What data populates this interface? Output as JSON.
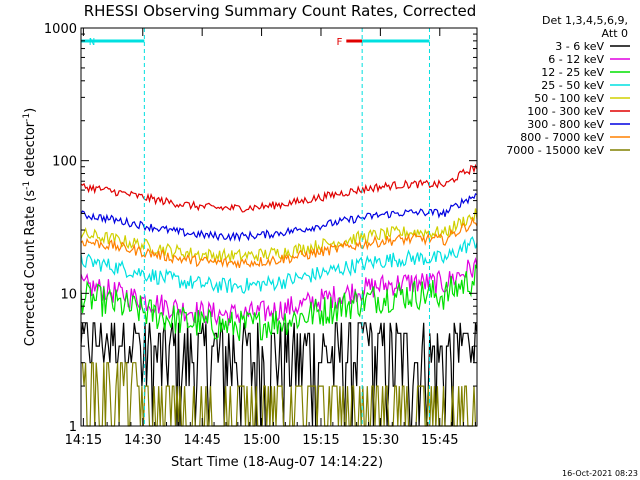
{
  "chart_data": {
    "type": "line",
    "title": "RHESSI Observing Summary Count Rates, Corrected",
    "xlabel": "Start Time (18-Aug-07 14:14:22)",
    "ylabel_main": "Corrected Count Rate (s",
    "ylabel_sup1": "-1",
    "ylabel_mid": " detector",
    "ylabel_sup2": "-1",
    "ylabel_end": ")",
    "xticks": [
      "14:15",
      "14:30",
      "14:45",
      "15:00",
      "15:15",
      "15:30",
      "15:45"
    ],
    "yticks": [
      "1",
      "10",
      "100",
      "1000"
    ],
    "xlim_minutes": [
      0,
      100
    ],
    "ylim": [
      1,
      1000
    ],
    "yscale": "log",
    "legend_header": [
      "Det 1,3,4,5,6,9,",
      "Att 0"
    ],
    "legend_position": "right",
    "series": [
      {
        "name": "3 - 6 keV",
        "color": "#000000",
        "profile": "bkg_low"
      },
      {
        "name": "6 - 12 keV",
        "color": "#e000e0",
        "profile": "wave",
        "base": 11,
        "amp": 0.4,
        "noise": 0.09
      },
      {
        "name": "12 - 25 keV",
        "color": "#00e000",
        "profile": "wave",
        "base": 9,
        "amp": 0.4,
        "noise": 0.12
      },
      {
        "name": "25 - 50 keV",
        "color": "#00e0e0",
        "profile": "wave",
        "base": 17,
        "amp": 0.35,
        "noise": 0.06
      },
      {
        "name": "50 - 100 keV",
        "color": "#d0d000",
        "profile": "wave",
        "base": 27,
        "amp": 0.3,
        "noise": 0.05
      },
      {
        "name": "100 - 300 keV",
        "color": "#e00000",
        "profile": "wave",
        "base": 62,
        "amp": 0.3,
        "noise": 0.03
      },
      {
        "name": "300 - 800 keV",
        "color": "#0000e0",
        "profile": "wave",
        "base": 38,
        "amp": 0.3,
        "noise": 0.03
      },
      {
        "name": "800 - 7000 keV",
        "color": "#ff8000",
        "profile": "wave",
        "base": 24,
        "amp": 0.3,
        "noise": 0.04
      },
      {
        "name": "7000 - 15000 keV",
        "color": "#808000",
        "profile": "bkg_olive"
      }
    ],
    "annotations": [
      {
        "label": "N",
        "color": "#00e0e0",
        "x_start": 0,
        "x_end": 16
      },
      {
        "label": "F",
        "color": "#e00000",
        "x_start": 67,
        "x_end": 71
      },
      {
        "label": "",
        "color": "#00e0e0",
        "x_start": 71,
        "x_end": 88
      }
    ],
    "vlines_minutes": [
      0,
      16,
      71,
      88
    ]
  },
  "timestamp": "16-Oct-2021 08:23"
}
